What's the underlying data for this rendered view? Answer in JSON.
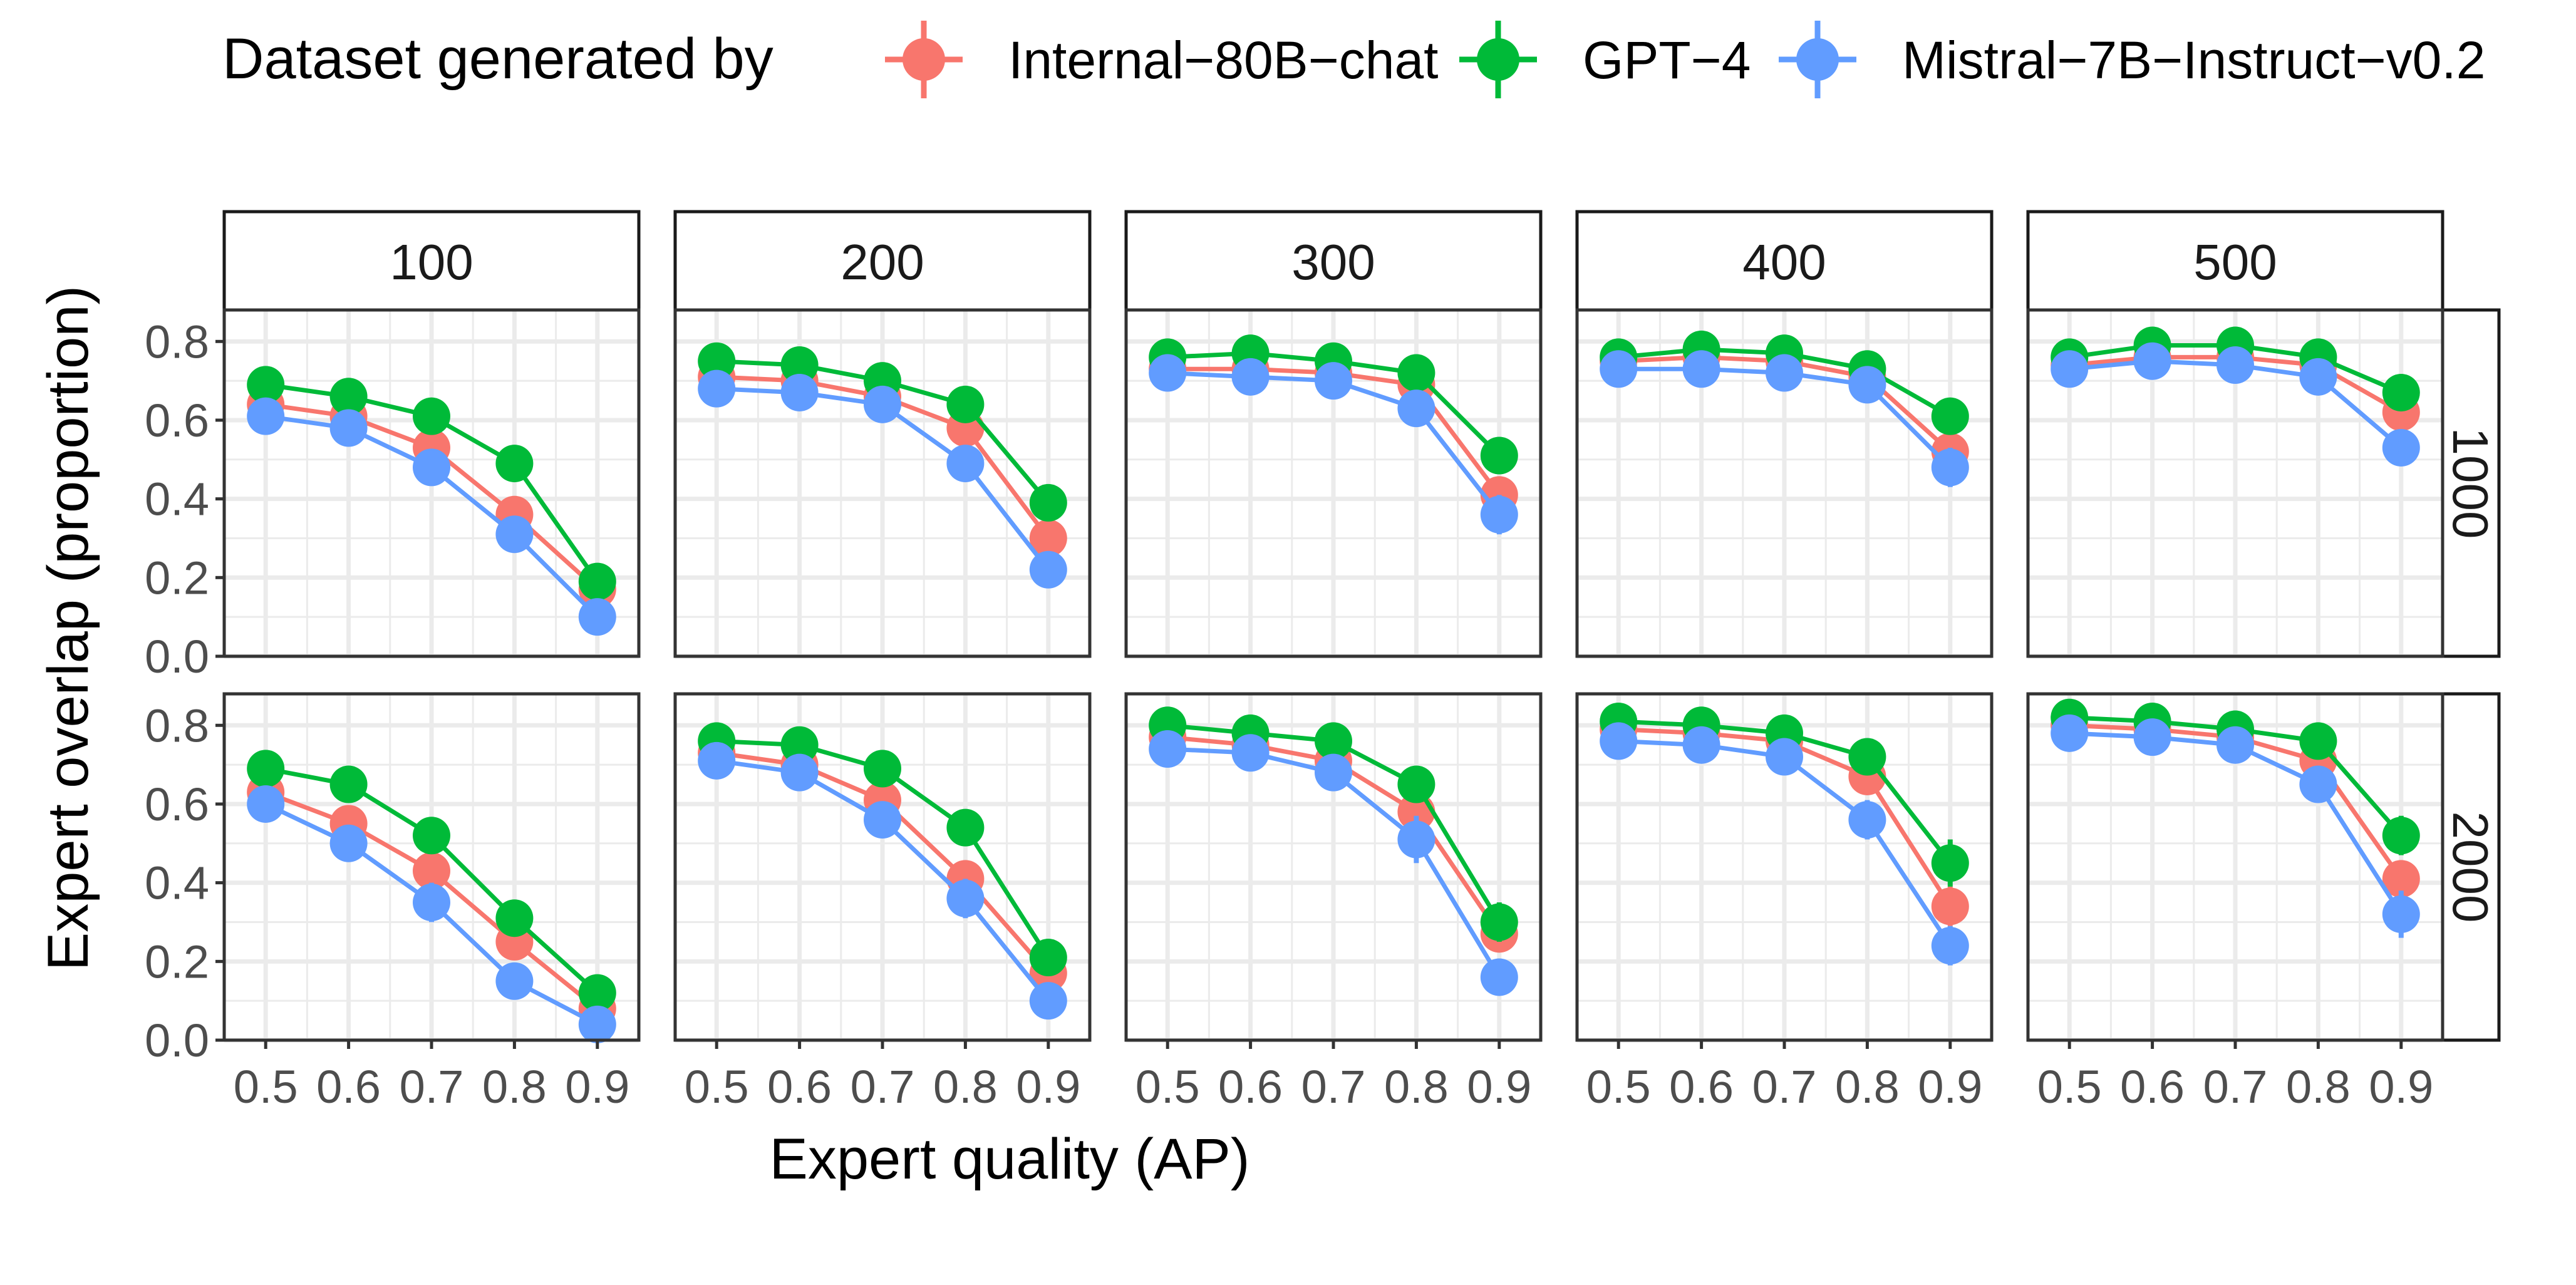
{
  "chart_data": {
    "type": "line",
    "xlabel": "Expert quality (AP)",
    "ylabel": "Expert overlap (proportion)",
    "x": [
      0.5,
      0.6,
      0.7,
      0.8,
      0.9
    ],
    "xticks": [
      "0.5",
      "0.6",
      "0.7",
      "0.8",
      "0.9"
    ],
    "ylim": [
      0.0,
      0.88
    ],
    "yticks": [
      "0.0",
      "0.2",
      "0.4",
      "0.6",
      "0.8"
    ],
    "ytick_values": [
      0.0,
      0.2,
      0.4,
      0.6,
      0.8
    ],
    "grid": true,
    "legend": {
      "position": "top",
      "title": "Dataset generated by",
      "entries": [
        "Internal−80B−chat",
        "GPT−4",
        "Mistral−7B−Instruct−v0.2"
      ]
    },
    "col_facets": [
      "100",
      "200",
      "300",
      "400",
      "500"
    ],
    "row_facets": [
      "1000",
      "2000"
    ],
    "colors": [
      "#F8766D",
      "#00BA38",
      "#619CFF"
    ],
    "panels": [
      {
        "row": "1000",
        "col": "100",
        "series": [
          {
            "name": "Internal−80B−chat",
            "values": [
              0.64,
              0.61,
              0.53,
              0.36,
              0.17
            ],
            "err": [
              0.02,
              0.02,
              0.03,
              0.03,
              0.03
            ]
          },
          {
            "name": "GPT−4",
            "values": [
              0.69,
              0.66,
              0.61,
              0.49,
              0.19
            ],
            "err": [
              0.02,
              0.02,
              0.02,
              0.02,
              0.03
            ]
          },
          {
            "name": "Mistral−7B−Instruct−v0.2",
            "values": [
              0.61,
              0.58,
              0.48,
              0.31,
              0.1
            ],
            "err": [
              0.02,
              0.02,
              0.03,
              0.04,
              0.02
            ]
          }
        ]
      },
      {
        "row": "1000",
        "col": "200",
        "series": [
          {
            "name": "Internal−80B−chat",
            "values": [
              0.71,
              0.7,
              0.66,
              0.58,
              0.3
            ],
            "err": [
              0.02,
              0.02,
              0.02,
              0.03,
              0.04
            ]
          },
          {
            "name": "GPT−4",
            "values": [
              0.75,
              0.74,
              0.7,
              0.64,
              0.39
            ],
            "err": [
              0.02,
              0.02,
              0.02,
              0.03,
              0.04
            ]
          },
          {
            "name": "Mistral−7B−Instruct−v0.2",
            "values": [
              0.68,
              0.67,
              0.64,
              0.49,
              0.22
            ],
            "err": [
              0.02,
              0.02,
              0.02,
              0.03,
              0.04
            ]
          }
        ]
      },
      {
        "row": "1000",
        "col": "300",
        "series": [
          {
            "name": "Internal−80B−chat",
            "values": [
              0.73,
              0.73,
              0.72,
              0.69,
              0.41
            ],
            "err": [
              0.02,
              0.02,
              0.02,
              0.02,
              0.04
            ]
          },
          {
            "name": "GPT−4",
            "values": [
              0.76,
              0.77,
              0.75,
              0.72,
              0.51
            ],
            "err": [
              0.02,
              0.02,
              0.02,
              0.02,
              0.04
            ]
          },
          {
            "name": "Mistral−7B−Instruct−v0.2",
            "values": [
              0.72,
              0.71,
              0.7,
              0.63,
              0.36
            ],
            "err": [
              0.02,
              0.02,
              0.02,
              0.03,
              0.05
            ]
          }
        ]
      },
      {
        "row": "1000",
        "col": "400",
        "series": [
          {
            "name": "Internal−80B−chat",
            "values": [
              0.75,
              0.76,
              0.75,
              0.71,
              0.52
            ],
            "err": [
              0.02,
              0.02,
              0.02,
              0.02,
              0.04
            ]
          },
          {
            "name": "GPT−4",
            "values": [
              0.76,
              0.78,
              0.77,
              0.73,
              0.61
            ],
            "err": [
              0.02,
              0.02,
              0.02,
              0.02,
              0.03
            ]
          },
          {
            "name": "Mistral−7B−Instruct−v0.2",
            "values": [
              0.73,
              0.73,
              0.72,
              0.69,
              0.48
            ],
            "err": [
              0.02,
              0.02,
              0.02,
              0.02,
              0.05
            ]
          }
        ]
      },
      {
        "row": "1000",
        "col": "500",
        "series": [
          {
            "name": "Internal−80B−chat",
            "values": [
              0.74,
              0.76,
              0.76,
              0.74,
              0.62
            ],
            "err": [
              0.02,
              0.02,
              0.02,
              0.02,
              0.03
            ]
          },
          {
            "name": "GPT−4",
            "values": [
              0.76,
              0.79,
              0.79,
              0.76,
              0.67
            ],
            "err": [
              0.02,
              0.02,
              0.02,
              0.02,
              0.03
            ]
          },
          {
            "name": "Mistral−7B−Instruct−v0.2",
            "values": [
              0.73,
              0.75,
              0.74,
              0.71,
              0.53
            ],
            "err": [
              0.02,
              0.02,
              0.02,
              0.02,
              0.04
            ]
          }
        ]
      },
      {
        "row": "2000",
        "col": "100",
        "series": [
          {
            "name": "Internal−80B−chat",
            "values": [
              0.63,
              0.55,
              0.43,
              0.25,
              0.08
            ],
            "err": [
              0.03,
              0.03,
              0.03,
              0.03,
              0.02
            ]
          },
          {
            "name": "GPT−4",
            "values": [
              0.69,
              0.65,
              0.52,
              0.31,
              0.12
            ],
            "err": [
              0.02,
              0.02,
              0.03,
              0.04,
              0.03
            ]
          },
          {
            "name": "Mistral−7B−Instruct−v0.2",
            "values": [
              0.6,
              0.5,
              0.35,
              0.15,
              0.04
            ],
            "err": [
              0.02,
              0.04,
              0.05,
              0.04,
              0.02
            ]
          }
        ]
      },
      {
        "row": "2000",
        "col": "200",
        "series": [
          {
            "name": "Internal−80B−chat",
            "values": [
              0.73,
              0.7,
              0.61,
              0.41,
              0.17
            ],
            "err": [
              0.02,
              0.02,
              0.03,
              0.04,
              0.03
            ]
          },
          {
            "name": "GPT−4",
            "values": [
              0.76,
              0.75,
              0.69,
              0.54,
              0.21
            ],
            "err": [
              0.02,
              0.02,
              0.02,
              0.04,
              0.04
            ]
          },
          {
            "name": "Mistral−7B−Instruct−v0.2",
            "values": [
              0.71,
              0.68,
              0.56,
              0.36,
              0.1
            ],
            "err": [
              0.02,
              0.02,
              0.04,
              0.05,
              0.03
            ]
          }
        ]
      },
      {
        "row": "2000",
        "col": "300",
        "series": [
          {
            "name": "Internal−80B−chat",
            "values": [
              0.77,
              0.75,
              0.71,
              0.58,
              0.27
            ],
            "err": [
              0.02,
              0.02,
              0.02,
              0.04,
              0.04
            ]
          },
          {
            "name": "GPT−4",
            "values": [
              0.8,
              0.78,
              0.76,
              0.65,
              0.3
            ],
            "err": [
              0.02,
              0.02,
              0.02,
              0.03,
              0.05
            ]
          },
          {
            "name": "Mistral−7B−Instruct−v0.2",
            "values": [
              0.74,
              0.73,
              0.68,
              0.51,
              0.16
            ],
            "err": [
              0.02,
              0.02,
              0.03,
              0.06,
              0.04
            ]
          }
        ]
      },
      {
        "row": "2000",
        "col": "400",
        "series": [
          {
            "name": "Internal−80B−chat",
            "values": [
              0.79,
              0.78,
              0.76,
              0.67,
              0.34
            ],
            "err": [
              0.02,
              0.02,
              0.02,
              0.03,
              0.05
            ]
          },
          {
            "name": "GPT−4",
            "values": [
              0.81,
              0.8,
              0.78,
              0.72,
              0.45
            ],
            "err": [
              0.02,
              0.02,
              0.02,
              0.03,
              0.06
            ]
          },
          {
            "name": "Mistral−7B−Instruct−v0.2",
            "values": [
              0.76,
              0.75,
              0.72,
              0.56,
              0.24
            ],
            "err": [
              0.02,
              0.02,
              0.02,
              0.05,
              0.05
            ]
          }
        ]
      },
      {
        "row": "2000",
        "col": "500",
        "series": [
          {
            "name": "Internal−80B−chat",
            "values": [
              0.8,
              0.79,
              0.77,
              0.71,
              0.41
            ],
            "err": [
              0.02,
              0.02,
              0.02,
              0.03,
              0.04
            ]
          },
          {
            "name": "GPT−4",
            "values": [
              0.82,
              0.81,
              0.79,
              0.76,
              0.52
            ],
            "err": [
              0.02,
              0.02,
              0.02,
              0.03,
              0.05
            ]
          },
          {
            "name": "Mistral−7B−Instruct−v0.2",
            "values": [
              0.78,
              0.77,
              0.75,
              0.65,
              0.32
            ],
            "err": [
              0.02,
              0.02,
              0.02,
              0.04,
              0.06
            ]
          }
        ]
      }
    ]
  }
}
